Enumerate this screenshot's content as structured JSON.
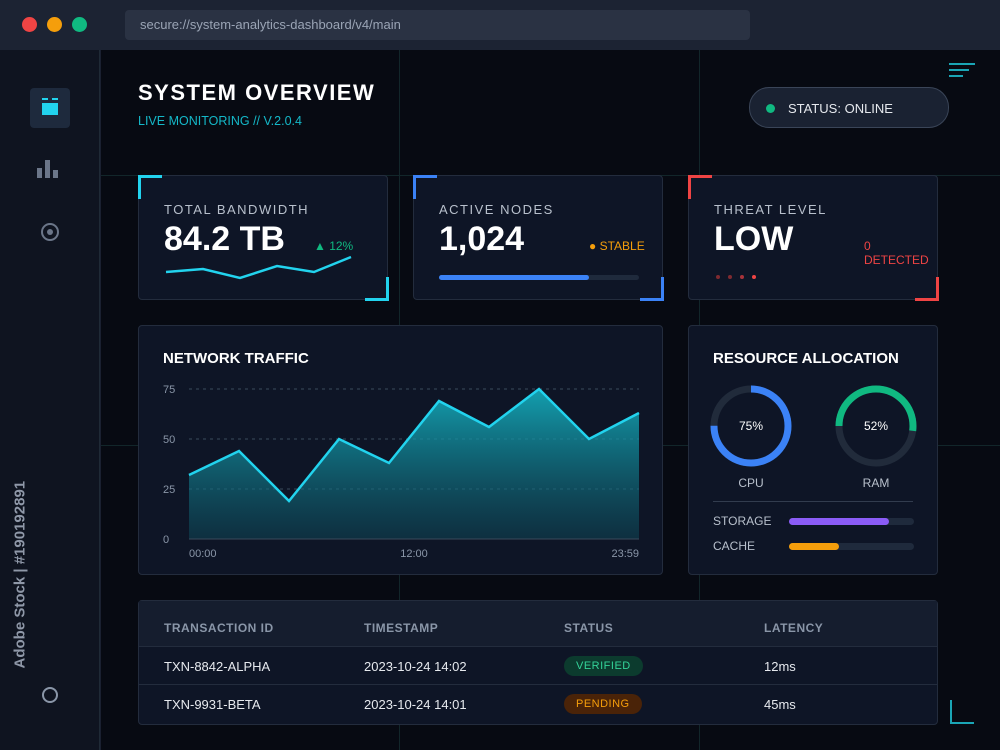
{
  "browser": {
    "url": "secure://system-analytics-dashboard/v4/main"
  },
  "sidebar": {
    "items": [
      {
        "name": "dashboard"
      },
      {
        "name": "analytics"
      },
      {
        "name": "target"
      }
    ]
  },
  "header": {
    "title": "SYSTEM OVERVIEW",
    "subtitle": "LIVE MONITORING // V.2.0.4",
    "status": "STATUS: ONLINE"
  },
  "stats": [
    {
      "label": "TOTAL BANDWIDTH",
      "value": "84.2 TB",
      "delta": "▲ 12%",
      "spark": [
        3,
        4,
        1,
        5,
        3,
        8
      ]
    },
    {
      "label": "ACTIVE NODES",
      "value": "1,024",
      "note": "● STABLE",
      "progress": 0.75
    },
    {
      "label": "THREAT LEVEL",
      "value": "LOW",
      "note": "0 DETECTED"
    }
  ],
  "chart_data": {
    "type": "area",
    "title": "NETWORK TRAFFIC",
    "x_ticks": [
      "00:00",
      "12:00",
      "23:59"
    ],
    "y_ticks": [
      "0",
      "25",
      "50",
      "75"
    ],
    "ylim": [
      0,
      75
    ],
    "values": [
      32,
      44,
      19,
      50,
      38,
      69,
      56,
      75,
      50,
      63
    ]
  },
  "resources": {
    "title": "RESOURCE ALLOCATION",
    "cpu": {
      "label": "CPU",
      "value": "75%",
      "fraction": 0.75
    },
    "ram": {
      "label": "RAM",
      "value": "52%",
      "fraction": 0.52
    },
    "storage": {
      "label": "STORAGE",
      "fraction": 0.8
    },
    "cache": {
      "label": "CACHE",
      "fraction": 0.4
    }
  },
  "table": {
    "headers": [
      "TRANSACTION ID",
      "TIMESTAMP",
      "STATUS",
      "LATENCY"
    ],
    "rows": [
      [
        "TXN-8842-ALPHA",
        "2023-10-24 14:02",
        "VERIFIED",
        "12ms"
      ],
      [
        "TXN-9931-BETA",
        "2023-10-24 14:01",
        "PENDING",
        "45ms"
      ]
    ]
  },
  "watermark": "Adobe Stock | #190192891",
  "colors": {
    "cyan": "#22d3ee",
    "blue": "#3b82f6",
    "red": "#ef4444",
    "green": "#10b981",
    "purple": "#8b5cf6",
    "amber": "#f59e0b"
  }
}
